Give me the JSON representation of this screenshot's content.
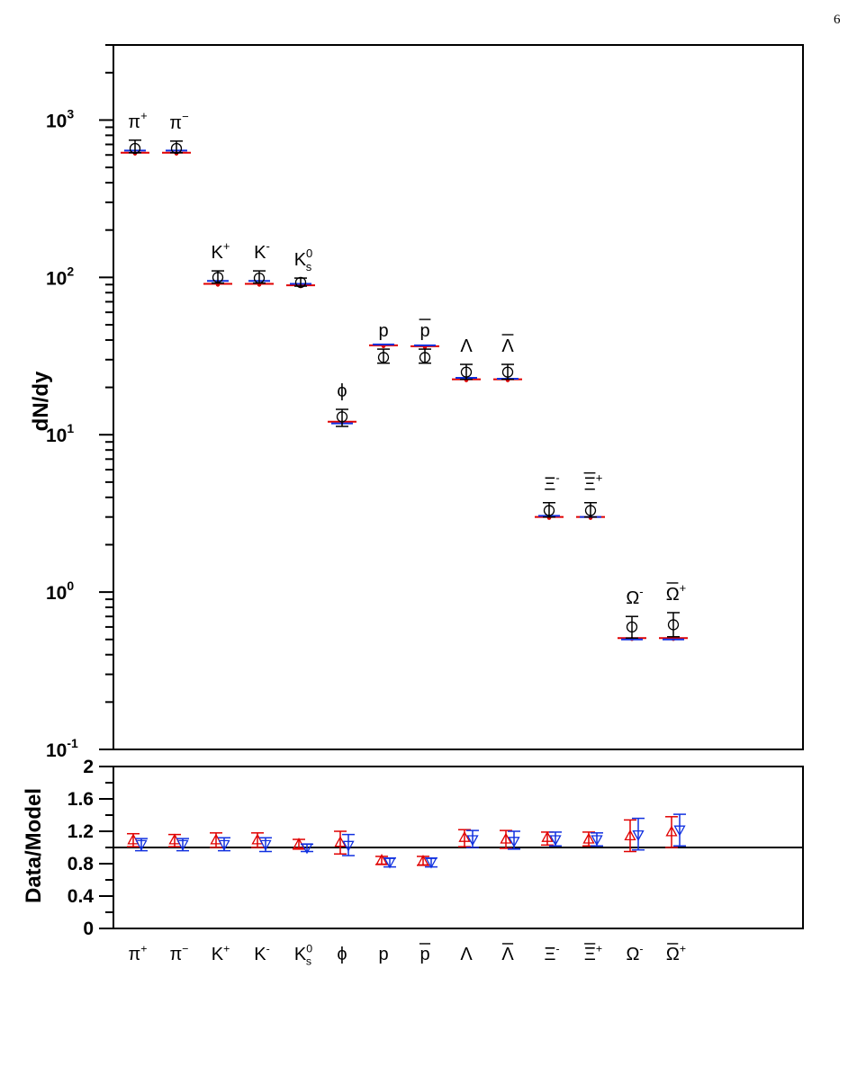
{
  "page_number": "6",
  "chart_data": [
    {
      "type": "scatter",
      "panel": "top",
      "ylabel": "dN/dy",
      "yscale": "log",
      "ylim": [
        0.1,
        3000
      ],
      "y_ticks": [
        {
          "value": 0.1,
          "base": "10",
          "exp": "-1"
        },
        {
          "value": 1,
          "base": "10",
          "exp": "0"
        },
        {
          "value": 10,
          "base": "10",
          "exp": "1"
        },
        {
          "value": 100,
          "base": "10",
          "exp": "2"
        },
        {
          "value": 1000,
          "base": "10",
          "exp": "3"
        }
      ],
      "categories": [
        "π+",
        "π−",
        "K+",
        "K-",
        "K0s",
        "ϕ",
        "p",
        "p̄",
        "Λ",
        "Λ̄",
        "Ξ-",
        "Ξ̄+",
        "Ω-",
        "Ω̄+"
      ],
      "category_labels": [
        {
          "base": "π",
          "sup": "+",
          "sub": "",
          "bar": false,
          "font": "serif"
        },
        {
          "base": "π",
          "sup": "−",
          "sub": "",
          "bar": false,
          "font": "serif"
        },
        {
          "base": "K",
          "sup": "+",
          "sub": "",
          "bar": false,
          "font": "sans"
        },
        {
          "base": "K",
          "sup": "-",
          "sub": "",
          "bar": false,
          "font": "sans"
        },
        {
          "base": "K",
          "sup": "0",
          "sub": "s",
          "bar": false,
          "font": "sans"
        },
        {
          "base": "ϕ",
          "sup": "",
          "sub": "",
          "bar": false,
          "font": "serif"
        },
        {
          "base": "p",
          "sup": "",
          "sub": "",
          "bar": false,
          "font": "sans"
        },
        {
          "base": "p",
          "sup": "",
          "sub": "",
          "bar": true,
          "font": "sans"
        },
        {
          "base": "Λ",
          "sup": "",
          "sub": "",
          "bar": false,
          "font": "serif"
        },
        {
          "base": "Λ",
          "sup": "",
          "sub": "",
          "bar": true,
          "font": "serif"
        },
        {
          "base": "Ξ",
          "sup": "-",
          "sub": "",
          "bar": false,
          "font": "serif"
        },
        {
          "base": "Ξ",
          "sup": "+",
          "sub": "",
          "bar": true,
          "font": "serif"
        },
        {
          "base": "Ω",
          "sup": "-",
          "sub": "",
          "bar": false,
          "font": "serif"
        },
        {
          "base": "Ω",
          "sup": "+",
          "sub": "",
          "bar": true,
          "font": "serif"
        }
      ],
      "series": [
        {
          "marker": "open-circle",
          "color": "#000000",
          "values": [
            660,
            660,
            100,
            99,
            93,
            13,
            31,
            31,
            25,
            25,
            3.3,
            3.3,
            0.6,
            0.62
          ],
          "err_high": [
            745,
            735,
            110,
            110,
            99,
            14.5,
            35,
            35,
            28,
            28,
            3.7,
            3.7,
            0.7,
            0.74
          ],
          "err_low": [
            620,
            620,
            92,
            92,
            88,
            11.3,
            28.5,
            28.5,
            22.5,
            22.5,
            3.0,
            3.0,
            0.51,
            0.52
          ]
        },
        {
          "marker": "red-dash",
          "color": "#e00000",
          "values": [
            620,
            620,
            91,
            91,
            89,
            12.1,
            37,
            36.5,
            22.5,
            22.5,
            3.0,
            3.0,
            0.51,
            0.51
          ]
        },
        {
          "marker": "blue-dash",
          "color": "#1030e0",
          "values": [
            640,
            640,
            95,
            95,
            91,
            11.8,
            37.5,
            37,
            23,
            22.7,
            3.05,
            3.0,
            0.5,
            0.5
          ]
        }
      ]
    },
    {
      "type": "scatter",
      "panel": "bottom",
      "ylabel": "Data/Model",
      "ylim": [
        0,
        2
      ],
      "y_ticks": [
        "0",
        "0.4",
        "0.8",
        "1.2",
        "1.6",
        "2"
      ],
      "reference_line": 1,
      "categories": [
        "π+",
        "π−",
        "K+",
        "K-",
        "K0s",
        "ϕ",
        "p",
        "p̄",
        "Λ",
        "Λ̄",
        "Ξ-",
        "Ξ̄+",
        "Ω-",
        "Ω̄+"
      ],
      "series": [
        {
          "marker": "open-triangle-up",
          "color": "#e00000",
          "values": [
            1.09,
            1.09,
            1.09,
            1.09,
            1.04,
            1.06,
            0.84,
            0.83,
            1.12,
            1.1,
            1.12,
            1.1,
            1.14,
            1.19
          ],
          "err_high": [
            1.17,
            1.16,
            1.18,
            1.18,
            1.1,
            1.2,
            0.89,
            0.89,
            1.22,
            1.21,
            1.19,
            1.19,
            1.34,
            1.38
          ],
          "err_low": [
            1.01,
            1.01,
            1.0,
            1.0,
            0.98,
            0.92,
            0.79,
            0.78,
            1.01,
            0.99,
            1.03,
            1.02,
            0.95,
            1.0
          ]
        },
        {
          "marker": "open-triangle-down",
          "color": "#1030e0",
          "values": [
            1.04,
            1.04,
            1.04,
            1.04,
            1.0,
            1.03,
            0.82,
            0.82,
            1.1,
            1.08,
            1.1,
            1.1,
            1.16,
            1.22
          ],
          "err_high": [
            1.11,
            1.11,
            1.12,
            1.12,
            1.04,
            1.16,
            0.87,
            0.87,
            1.21,
            1.2,
            1.19,
            1.18,
            1.36,
            1.41
          ],
          "err_low": [
            0.96,
            0.96,
            0.96,
            0.95,
            0.95,
            0.9,
            0.76,
            0.76,
            1.0,
            0.98,
            1.02,
            1.02,
            0.97,
            1.02
          ]
        }
      ]
    }
  ]
}
